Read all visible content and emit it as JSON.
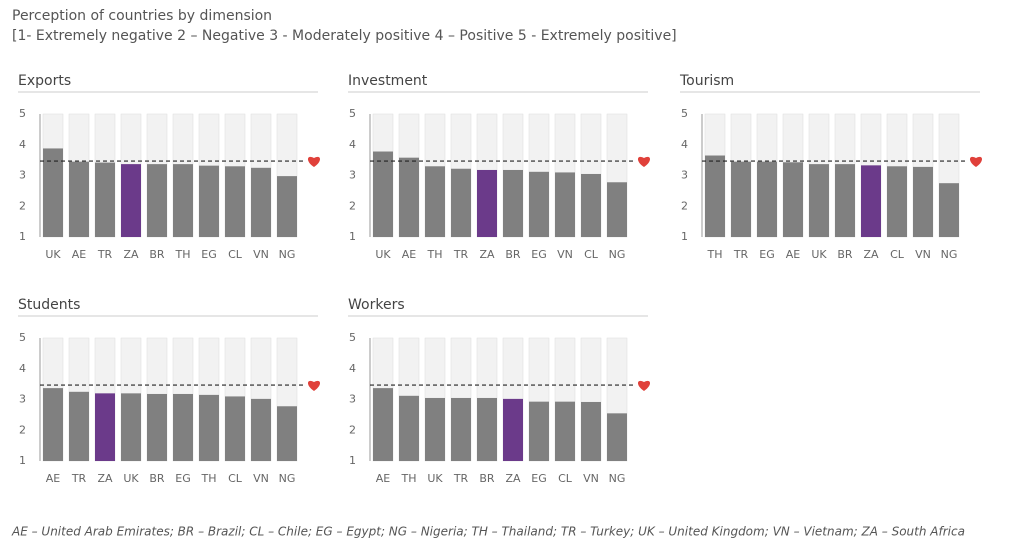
{
  "title": "Perception of countries by dimension",
  "subtitle": "[1- Extremely negative 2 – Negative 3 - Moderately positive 4 – Positive 5 - Extremely positive]",
  "footnote": "AE – United Arab Emirates; BR – Brazil; CL – Chile; EG – Egypt; NG – Nigeria; TH – Thailand; TR – Turkey; UK – United Kingdom; VN – Vietnam; ZA – South Africa",
  "chart_data": [
    {
      "type": "bar",
      "title": "Exports",
      "categories": [
        "UK",
        "AE",
        "TR",
        "ZA",
        "BR",
        "TH",
        "EG",
        "CL",
        "VN",
        "NG"
      ],
      "values": [
        3.88,
        3.45,
        3.42,
        3.37,
        3.37,
        3.37,
        3.32,
        3.3,
        3.25,
        2.98
      ],
      "colors": [
        "#808080",
        "#808080",
        "#808080",
        "#6b3a8a",
        "#808080",
        "#808080",
        "#808080",
        "#808080",
        "#808080",
        "#808080"
      ],
      "reference_line": 3.47,
      "ylim": [
        1,
        5
      ],
      "yticks": [
        1,
        2,
        3,
        4,
        5
      ]
    },
    {
      "type": "bar",
      "title": "Investment",
      "categories": [
        "UK",
        "AE",
        "TH",
        "TR",
        "ZA",
        "BR",
        "EG",
        "VN",
        "CL",
        "NG"
      ],
      "values": [
        3.78,
        3.58,
        3.3,
        3.22,
        3.18,
        3.18,
        3.12,
        3.1,
        3.05,
        2.78
      ],
      "colors": [
        "#808080",
        "#808080",
        "#808080",
        "#808080",
        "#6b3a8a",
        "#808080",
        "#808080",
        "#808080",
        "#808080",
        "#808080"
      ],
      "reference_line": 3.47,
      "ylim": [
        1,
        5
      ],
      "yticks": [
        1,
        2,
        3,
        4,
        5
      ]
    },
    {
      "type": "bar",
      "title": "Tourism",
      "categories": [
        "TH",
        "TR",
        "EG",
        "AE",
        "UK",
        "BR",
        "ZA",
        "CL",
        "VN",
        "NG"
      ],
      "values": [
        3.65,
        3.45,
        3.45,
        3.43,
        3.37,
        3.37,
        3.33,
        3.3,
        3.28,
        2.75
      ],
      "colors": [
        "#808080",
        "#808080",
        "#808080",
        "#808080",
        "#808080",
        "#808080",
        "#6b3a8a",
        "#808080",
        "#808080",
        "#808080"
      ],
      "reference_line": 3.47,
      "ylim": [
        1,
        5
      ],
      "yticks": [
        1,
        2,
        3,
        4,
        5
      ]
    },
    {
      "type": "bar",
      "title": "Students",
      "categories": [
        "AE",
        "TR",
        "ZA",
        "UK",
        "BR",
        "EG",
        "TH",
        "CL",
        "VN",
        "NG"
      ],
      "values": [
        3.37,
        3.25,
        3.2,
        3.2,
        3.18,
        3.18,
        3.15,
        3.1,
        3.02,
        2.78
      ],
      "colors": [
        "#808080",
        "#808080",
        "#6b3a8a",
        "#808080",
        "#808080",
        "#808080",
        "#808080",
        "#808080",
        "#808080",
        "#808080"
      ],
      "reference_line": 3.47,
      "ylim": [
        1,
        5
      ],
      "yticks": [
        1,
        2,
        3,
        4,
        5
      ]
    },
    {
      "type": "bar",
      "title": "Workers",
      "categories": [
        "AE",
        "TH",
        "UK",
        "TR",
        "BR",
        "ZA",
        "EG",
        "CL",
        "VN",
        "NG"
      ],
      "values": [
        3.37,
        3.12,
        3.05,
        3.05,
        3.05,
        3.02,
        2.93,
        2.93,
        2.92,
        2.55
      ],
      "colors": [
        "#808080",
        "#808080",
        "#808080",
        "#808080",
        "#808080",
        "#6b3a8a",
        "#808080",
        "#808080",
        "#808080",
        "#808080"
      ],
      "reference_line": 3.47,
      "ylim": [
        1,
        5
      ],
      "yticks": [
        1,
        2,
        3,
        4,
        5
      ]
    }
  ]
}
